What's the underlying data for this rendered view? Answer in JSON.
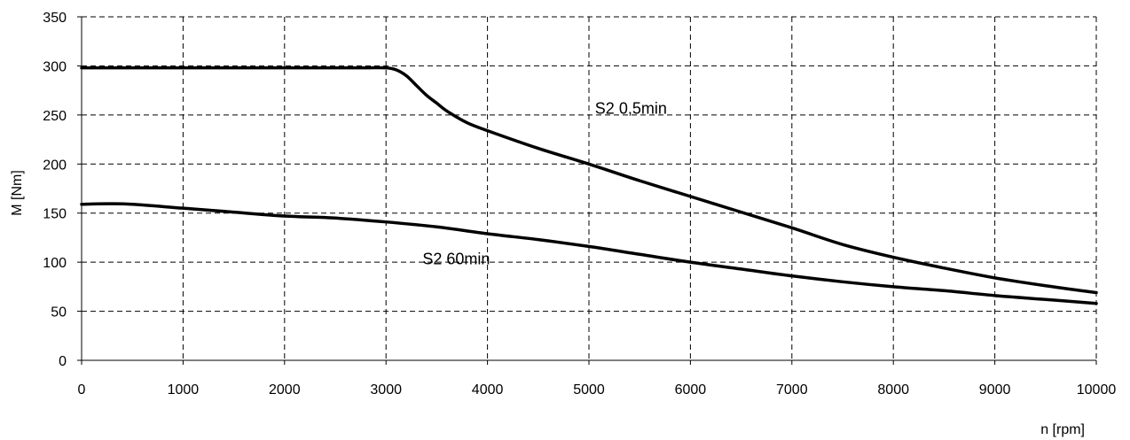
{
  "chart_data": {
    "type": "line",
    "xlabel": "n [rpm]",
    "ylabel": "M [Nm]",
    "xlim": [
      0,
      10000
    ],
    "ylim": [
      0,
      350
    ],
    "grid": true,
    "xticks": [
      0,
      1000,
      2000,
      3000,
      4000,
      5000,
      6000,
      7000,
      8000,
      9000,
      10000
    ],
    "yticks": [
      0,
      50,
      100,
      150,
      200,
      250,
      300,
      350
    ],
    "series": [
      {
        "name": "S2 0,5min",
        "x": [
          0,
          1000,
          2000,
          2500,
          2800,
          3000,
          3100,
          3200,
          3300,
          3400,
          3500,
          3600,
          3800,
          4000,
          4500,
          5000,
          5500,
          6000,
          6500,
          7000,
          7500,
          8000,
          8500,
          9000,
          9500,
          10000
        ],
        "y": [
          298,
          298,
          298,
          298,
          298,
          298,
          296,
          290,
          280,
          270,
          262,
          254,
          242,
          234,
          216,
          200,
          183,
          167,
          151,
          135,
          118,
          105,
          94,
          84,
          76,
          69
        ]
      },
      {
        "name": "S2 60min",
        "x": [
          0,
          250,
          500,
          1000,
          1500,
          2000,
          2500,
          3000,
          3500,
          4000,
          4500,
          5000,
          5500,
          6000,
          6500,
          7000,
          7500,
          8000,
          8500,
          9000,
          9500,
          10000
        ],
        "y": [
          159,
          159.5,
          159,
          155,
          151,
          147,
          145,
          141,
          136,
          129,
          123,
          116,
          108,
          100,
          93,
          86,
          80,
          75,
          71,
          66,
          62,
          58
        ]
      }
    ],
    "annotations": [
      {
        "text": "S2 0,5min",
        "x": 4500,
        "y": 251
      },
      {
        "text": "S2 60min",
        "x": 2800,
        "y": 98
      }
    ]
  }
}
